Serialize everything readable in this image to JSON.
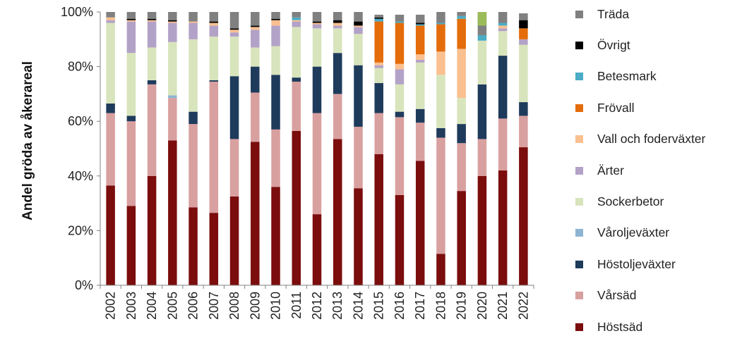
{
  "chart_data": {
    "type": "bar",
    "stacked": true,
    "percent": true,
    "ylabel": "Andel gröda av åkerareal",
    "ylim": [
      0,
      100
    ],
    "yticks": [
      "0%",
      "20%",
      "40%",
      "60%",
      "80%",
      "100%"
    ],
    "grid": false,
    "legend_position": "right",
    "categories": [
      "2002",
      "2003",
      "2004",
      "2005",
      "2006",
      "2007",
      "2008",
      "2009",
      "2010",
      "2011",
      "2012",
      "2013",
      "2014",
      "2015",
      "2016",
      "2017",
      "2018",
      "2019",
      "2020",
      "2021",
      "2022"
    ],
    "series": [
      {
        "name": "Höstsäd",
        "color": "#7b0d0d",
        "values": [
          36.5,
          29,
          40,
          53,
          28.5,
          26.5,
          32.5,
          52.5,
          36,
          56.5,
          26,
          53.5,
          35.5,
          48,
          33,
          45.5,
          11.5,
          34.5,
          40,
          42,
          50.5
        ]
      },
      {
        "name": "Vårsäd",
        "color": "#d9a0a0",
        "values": [
          26.5,
          31,
          33.5,
          15.5,
          30.5,
          48,
          21,
          18,
          21,
          18,
          37,
          16.5,
          22.5,
          15,
          28.5,
          14,
          42.5,
          17.5,
          13.5,
          19,
          11.5
        ]
      },
      {
        "name": "Höstoljeväxter",
        "color": "#1f3b5c",
        "values": [
          3.5,
          2,
          1.5,
          0,
          4.5,
          0.5,
          23,
          9.5,
          20,
          1.5,
          17,
          15,
          22.5,
          11,
          2,
          5,
          3.5,
          7,
          20,
          23,
          5
        ]
      },
      {
        "name": "Våroljeväxter",
        "color": "#8db4d2",
        "values": [
          0,
          0,
          0,
          1,
          0,
          0,
          0,
          0,
          0,
          0,
          0,
          0,
          0,
          0,
          0,
          0,
          0,
          0,
          0,
          0,
          0
        ]
      },
      {
        "name": "Sockerbetor",
        "color": "#d8e4bc",
        "values": [
          29.5,
          23,
          12,
          19.5,
          26.5,
          16,
          14.5,
          7,
          10.5,
          18.5,
          14,
          9,
          11.5,
          5.5,
          10,
          17,
          19.5,
          9.5,
          16,
          9,
          21
        ]
      },
      {
        "name": "Ärter",
        "color": "#b3a2c7",
        "values": [
          1,
          11.5,
          9.5,
          7,
          6,
          4,
          1.5,
          6.5,
          7.5,
          2,
          1.5,
          1,
          2.5,
          1,
          5.5,
          1,
          0,
          0,
          0,
          1,
          2
        ]
      },
      {
        "name": "Vall och foderväxter",
        "color": "#fac090",
        "values": [
          1,
          0.5,
          0.5,
          0.5,
          0.5,
          1,
          1,
          1,
          2,
          0.5,
          0.5,
          1,
          0.5,
          1,
          2,
          2,
          8.5,
          18,
          0,
          1,
          0
        ]
      },
      {
        "name": "Frövall",
        "color": "#e46c0a",
        "values": [
          0,
          0,
          0,
          0,
          0,
          0,
          0,
          0,
          0,
          0,
          0,
          0,
          0,
          15,
          15,
          10.5,
          10,
          11,
          0,
          0,
          4
        ]
      },
      {
        "name": "Betesmark",
        "color": "#4bacc6",
        "values": [
          0,
          0,
          0,
          0,
          0,
          0,
          0,
          0,
          0,
          1,
          0,
          0,
          0,
          1,
          0.5,
          0.5,
          0.5,
          1,
          2,
          1,
          0
        ]
      },
      {
        "name": "Övrigt",
        "color": "#000000",
        "values": [
          0,
          0.5,
          0.5,
          0.5,
          0,
          0.5,
          0.5,
          0.5,
          0.5,
          0,
          0.5,
          1,
          1.5,
          0.5,
          0,
          0.5,
          0,
          0,
          0,
          0,
          3
        ]
      },
      {
        "name": "Träda",
        "color": "#808080",
        "values": [
          2,
          2.5,
          2.5,
          3,
          3.5,
          3.5,
          6,
          5,
          2.5,
          2,
          3.5,
          3,
          3.5,
          1,
          2.5,
          3,
          4,
          1.5,
          8.5,
          4,
          2.5
        ]
      }
    ],
    "extra_segments": [
      {
        "category": "2020",
        "color": "#9bbb59",
        "from": 95,
        "to": 100
      }
    ]
  }
}
